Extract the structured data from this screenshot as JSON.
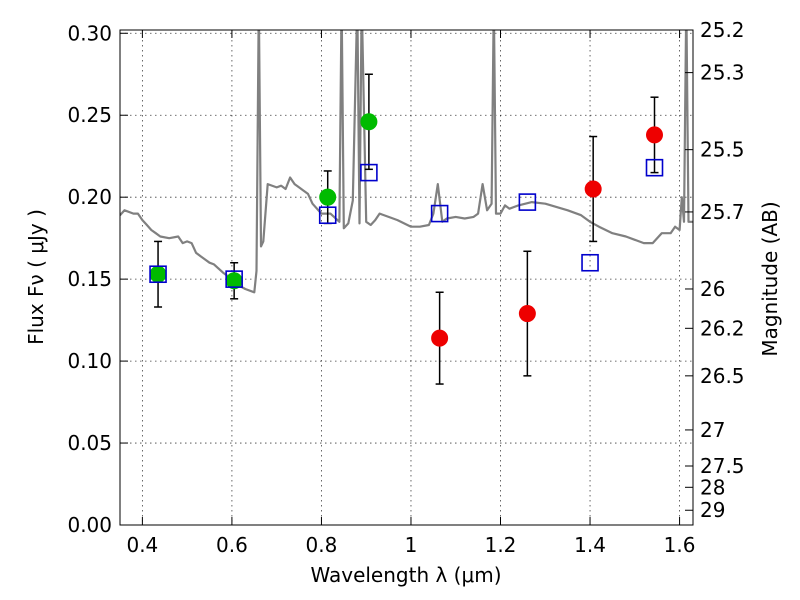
{
  "chart_data": {
    "type": "scatter",
    "xlabel": "Wavelength  λ (μm)",
    "ylabel": "Flux  Fν  ( μJy )",
    "y2label": "Magnitude (AB)",
    "xlim": [
      0.35,
      1.63
    ],
    "ylim": [
      0.0,
      0.302
    ],
    "grid": true,
    "x_ticks": [
      0.4,
      0.6,
      0.8,
      1.0,
      1.2,
      1.4,
      1.6
    ],
    "x_tick_labels": [
      "0.4",
      "0.6",
      "0.8",
      "1",
      "1.2",
      "1.4",
      "1.6"
    ],
    "y_ticks": [
      0.0,
      0.05,
      0.1,
      0.15,
      0.2,
      0.25,
      0.3
    ],
    "y_tick_labels": [
      "0.00",
      "0.05",
      "0.10",
      "0.15",
      "0.20",
      "0.25",
      "0.30"
    ],
    "y2_ticks": [
      {
        "label": "25.2",
        "flux": 0.302
      },
      {
        "label": "25.3",
        "flux": 0.276
      },
      {
        "label": "25.5",
        "flux": 0.229
      },
      {
        "label": "25.7",
        "flux": 0.191
      },
      {
        "label": "26",
        "flux": 0.144
      },
      {
        "label": "26.2",
        "flux": 0.12
      },
      {
        "label": "26.5",
        "flux": 0.091
      },
      {
        "label": "27",
        "flux": 0.058
      },
      {
        "label": "27.5",
        "flux": 0.036
      },
      {
        "label": "28",
        "flux": 0.023
      },
      {
        "label": "29",
        "flux": 0.009
      }
    ],
    "colors": {
      "detection_green": "#00bb00",
      "detection_red": "#ee0000",
      "model_box": "#0000cc",
      "spectrum": "#808080",
      "errorbar": "#000000"
    },
    "series": [
      {
        "kind": "spectrum",
        "x": [
          0.35,
          0.36,
          0.38,
          0.39,
          0.4,
          0.41,
          0.42,
          0.43,
          0.44,
          0.46,
          0.48,
          0.49,
          0.5,
          0.51,
          0.52,
          0.53,
          0.54,
          0.55,
          0.56,
          0.58,
          0.6,
          0.61,
          0.63,
          0.65,
          0.655,
          0.66,
          0.665,
          0.67,
          0.68,
          0.7,
          0.71,
          0.72,
          0.73,
          0.74,
          0.75,
          0.76,
          0.77,
          0.78,
          0.8,
          0.82,
          0.84,
          0.845,
          0.85,
          0.86,
          0.87,
          0.88,
          0.885,
          0.89,
          0.9,
          0.91,
          0.92,
          0.93,
          0.95,
          0.97,
          1.0,
          1.02,
          1.04,
          1.05,
          1.06,
          1.07,
          1.08,
          1.1,
          1.12,
          1.14,
          1.15,
          1.16,
          1.17,
          1.18,
          1.185,
          1.19,
          1.2,
          1.21,
          1.22,
          1.24,
          1.27,
          1.3,
          1.35,
          1.38,
          1.4,
          1.42,
          1.45,
          1.48,
          1.5,
          1.52,
          1.54,
          1.56,
          1.58,
          1.59,
          1.6,
          1.605,
          1.61,
          1.615,
          1.62,
          1.63
        ],
        "y": [
          0.189,
          0.192,
          0.19,
          0.19,
          0.186,
          0.183,
          0.18,
          0.178,
          0.176,
          0.175,
          0.176,
          0.172,
          0.173,
          0.172,
          0.166,
          0.164,
          0.162,
          0.16,
          0.159,
          0.154,
          0.15,
          0.147,
          0.144,
          0.142,
          0.155,
          0.32,
          0.17,
          0.173,
          0.208,
          0.206,
          0.207,
          0.205,
          0.212,
          0.208,
          0.206,
          0.204,
          0.202,
          0.196,
          0.19,
          0.19,
          0.185,
          0.32,
          0.181,
          0.184,
          0.198,
          0.32,
          0.184,
          0.32,
          0.185,
          0.183,
          0.186,
          0.19,
          0.188,
          0.186,
          0.182,
          0.182,
          0.183,
          0.19,
          0.208,
          0.185,
          0.187,
          0.188,
          0.187,
          0.188,
          0.19,
          0.208,
          0.192,
          0.196,
          0.32,
          0.19,
          0.19,
          0.195,
          0.193,
          0.195,
          0.197,
          0.196,
          0.192,
          0.189,
          0.185,
          0.182,
          0.178,
          0.176,
          0.174,
          0.172,
          0.172,
          0.178,
          0.178,
          0.182,
          0.18,
          0.2,
          0.185,
          0.32,
          0.185,
          0.185
        ]
      },
      {
        "kind": "points",
        "name": "",
        "color": "detection_green",
        "points": [
          {
            "x": 0.435,
            "y": 0.153,
            "err_low": 0.02,
            "err_high": 0.02
          },
          {
            "x": 0.605,
            "y": 0.149,
            "err_low": 0.011,
            "err_high": 0.011
          },
          {
            "x": 0.814,
            "y": 0.2,
            "err_low": 0.016,
            "err_high": 0.016
          },
          {
            "x": 0.906,
            "y": 0.246,
            "err_low": 0.029,
            "err_high": 0.029
          }
        ]
      },
      {
        "kind": "points",
        "name": "",
        "color": "detection_red",
        "points": [
          {
            "x": 1.064,
            "y": 0.114,
            "err_low": 0.028,
            "err_high": 0.028
          },
          {
            "x": 1.26,
            "y": 0.129,
            "err_low": 0.038,
            "err_high": 0.038
          },
          {
            "x": 1.407,
            "y": 0.205,
            "err_low": 0.032,
            "err_high": 0.032
          },
          {
            "x": 1.544,
            "y": 0.238,
            "err_low": 0.023,
            "err_high": 0.023
          }
        ]
      },
      {
        "kind": "boxes",
        "name": "",
        "color": "model_box",
        "points": [
          {
            "x": 0.435,
            "y": 0.153
          },
          {
            "x": 0.605,
            "y": 0.15
          },
          {
            "x": 0.814,
            "y": 0.189
          },
          {
            "x": 0.906,
            "y": 0.215
          },
          {
            "x": 1.064,
            "y": 0.19
          },
          {
            "x": 1.26,
            "y": 0.197
          },
          {
            "x": 1.4,
            "y": 0.16
          },
          {
            "x": 1.544,
            "y": 0.218
          }
        ]
      }
    ]
  }
}
